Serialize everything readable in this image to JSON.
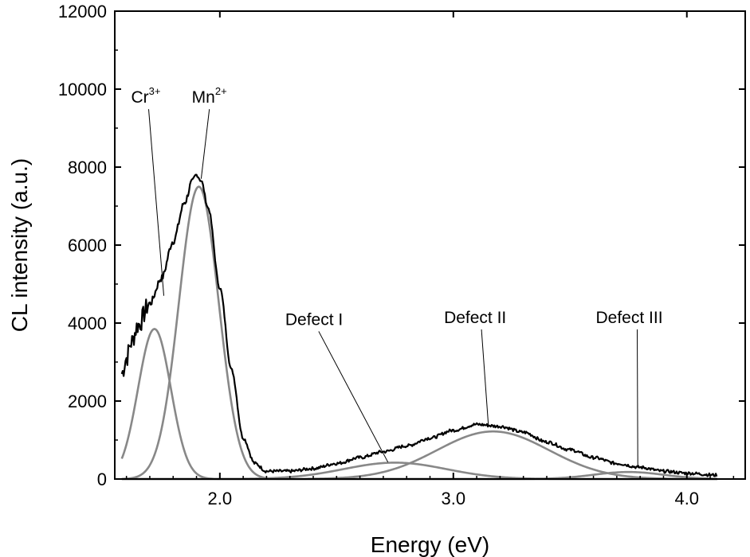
{
  "chart_data": {
    "type": "line",
    "xlabel": "Energy (eV)",
    "ylabel": "CL intensity (a.u.)",
    "xlim": [
      1.55,
      4.25
    ],
    "ylim": [
      0,
      12000
    ],
    "x_ticks": [
      {
        "value": 2.0,
        "label": "2.0"
      },
      {
        "value": 3.0,
        "label": "3.0"
      },
      {
        "value": 4.0,
        "label": "4.0"
      }
    ],
    "y_ticks": [
      {
        "value": 0,
        "label": "0"
      },
      {
        "value": 2000,
        "label": "2000"
      },
      {
        "value": 4000,
        "label": "4000"
      },
      {
        "value": 6000,
        "label": "6000"
      },
      {
        "value": 8000,
        "label": "8000"
      },
      {
        "value": 10000,
        "label": "10000"
      },
      {
        "value": 12000,
        "label": "12000"
      }
    ],
    "grid": false,
    "legend": "none",
    "measured_color": "#000000",
    "fit_color": "#888888",
    "series": [
      {
        "role": "measured",
        "x": [
          1.58,
          1.6,
          1.62,
          1.65,
          1.7,
          1.75,
          1.8,
          1.85,
          1.88,
          1.9,
          1.92,
          1.95,
          2.0,
          2.05,
          2.1,
          2.15,
          2.2,
          2.3,
          2.4,
          2.5,
          2.6,
          2.7,
          2.8,
          2.9,
          3.0,
          3.1,
          3.2,
          3.3,
          3.4,
          3.5,
          3.6,
          3.7,
          3.8,
          3.9,
          4.0,
          4.13
        ],
        "y": [
          2700,
          3100,
          3500,
          3950,
          4500,
          5150,
          6100,
          7100,
          7600,
          7800,
          7650,
          6950,
          4900,
          2800,
          1050,
          400,
          200,
          200,
          270,
          400,
          550,
          700,
          850,
          1050,
          1250,
          1400,
          1350,
          1200,
          950,
          750,
          550,
          400,
          300,
          200,
          150,
          100
        ]
      },
      {
        "label": "Cr3+",
        "label_base": "Cr",
        "label_sup": "3+",
        "peak": 1.72,
        "sigma": 0.07,
        "amplitude": 3850
      },
      {
        "label": "Mn2+",
        "label_base": "Mn",
        "label_sup": "2+",
        "peak": 1.91,
        "sigma": 0.085,
        "amplitude": 7500
      },
      {
        "label": "Defect I",
        "peak": 2.75,
        "sigma": 0.22,
        "amplitude": 420
      },
      {
        "label": "Defect II",
        "peak": 3.17,
        "sigma": 0.24,
        "amplitude": 1220
      },
      {
        "label": "Defect III",
        "peak": 3.75,
        "sigma": 0.15,
        "amplitude": 180
      }
    ],
    "annotations": [
      {
        "text": "Cr3+",
        "base": "Cr",
        "sup": "3+",
        "label_x": 1.62,
        "label_y": 9650,
        "tip_x": 1.76,
        "tip_y": 4700
      },
      {
        "text": "Mn2+",
        "base": "Mn",
        "sup": "2+",
        "label_x": 1.88,
        "label_y": 9650,
        "tip_x": 1.92,
        "tip_y": 7700
      },
      {
        "text": "Defect I",
        "label_x": 2.28,
        "label_y": 3950,
        "tip_x": 2.72,
        "tip_y": 430
      },
      {
        "text": "Defect II",
        "label_x": 2.96,
        "label_y": 4000,
        "tip_x": 3.15,
        "tip_y": 1380
      },
      {
        "text": "Defect III",
        "label_x": 3.61,
        "label_y": 4000,
        "tip_x": 3.79,
        "tip_y": 280
      }
    ]
  }
}
